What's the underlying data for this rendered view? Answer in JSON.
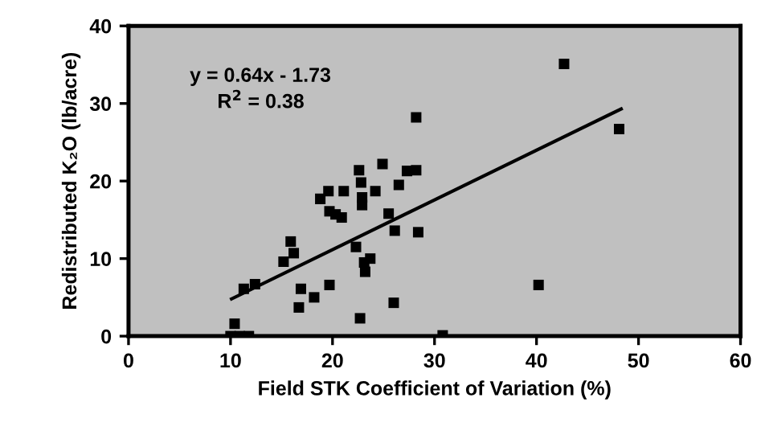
{
  "chart_data": {
    "type": "scatter",
    "xlabel": "Field STK Coefficient of Variation (%)",
    "ylabel": "Redistributed K₂O (lb/acre)",
    "xlim": [
      0,
      60
    ],
    "ylim": [
      0,
      40
    ],
    "xticks": [
      0,
      10,
      20,
      30,
      40,
      50,
      60
    ],
    "yticks": [
      0,
      10,
      20,
      30,
      40
    ],
    "grid": false,
    "legend": false,
    "marker": "square",
    "annotations": [
      "y = 0.64x - 1.73",
      "R$^{2}$ = 0.38"
    ],
    "series": [
      {
        "color": "#000000",
        "x": [
          28.2,
          22.6,
          24.9,
          27.3,
          28.2,
          22.8,
          26.5,
          18.8,
          19.6,
          21.1,
          22.9,
          22.9,
          24.2,
          19.7,
          20.3,
          20.9,
          25.5,
          26.1,
          28.4,
          22.3,
          15.9,
          15.2,
          16.2,
          23.7,
          23.1,
          23.2,
          12.4,
          11.3,
          16.9,
          19.7,
          18.2,
          16.7,
          26.0,
          22.7,
          10.4,
          10.0,
          10.9,
          11.8,
          42.7,
          48.1,
          40.2,
          30.8
        ],
        "values": [
          28.2,
          21.4,
          22.2,
          21.3,
          21.4,
          19.8,
          19.5,
          17.7,
          18.7,
          18.7,
          17.9,
          16.9,
          18.7,
          16.1,
          15.7,
          15.3,
          15.8,
          13.6,
          13.4,
          11.5,
          12.2,
          9.6,
          10.7,
          10.0,
          9.5,
          8.3,
          6.7,
          6.1,
          6.1,
          6.6,
          5.0,
          3.7,
          4.3,
          2.3,
          1.6,
          0,
          0,
          0,
          35.1,
          26.7,
          6.6,
          0.1
        ]
      },
      {
        "type": "line",
        "color": "#000000",
        "line_style": "solid",
        "marker": "none",
        "x": [
          10.1,
          48.3
        ],
        "values": [
          4.8,
          29.3
        ]
      }
    ]
  }
}
